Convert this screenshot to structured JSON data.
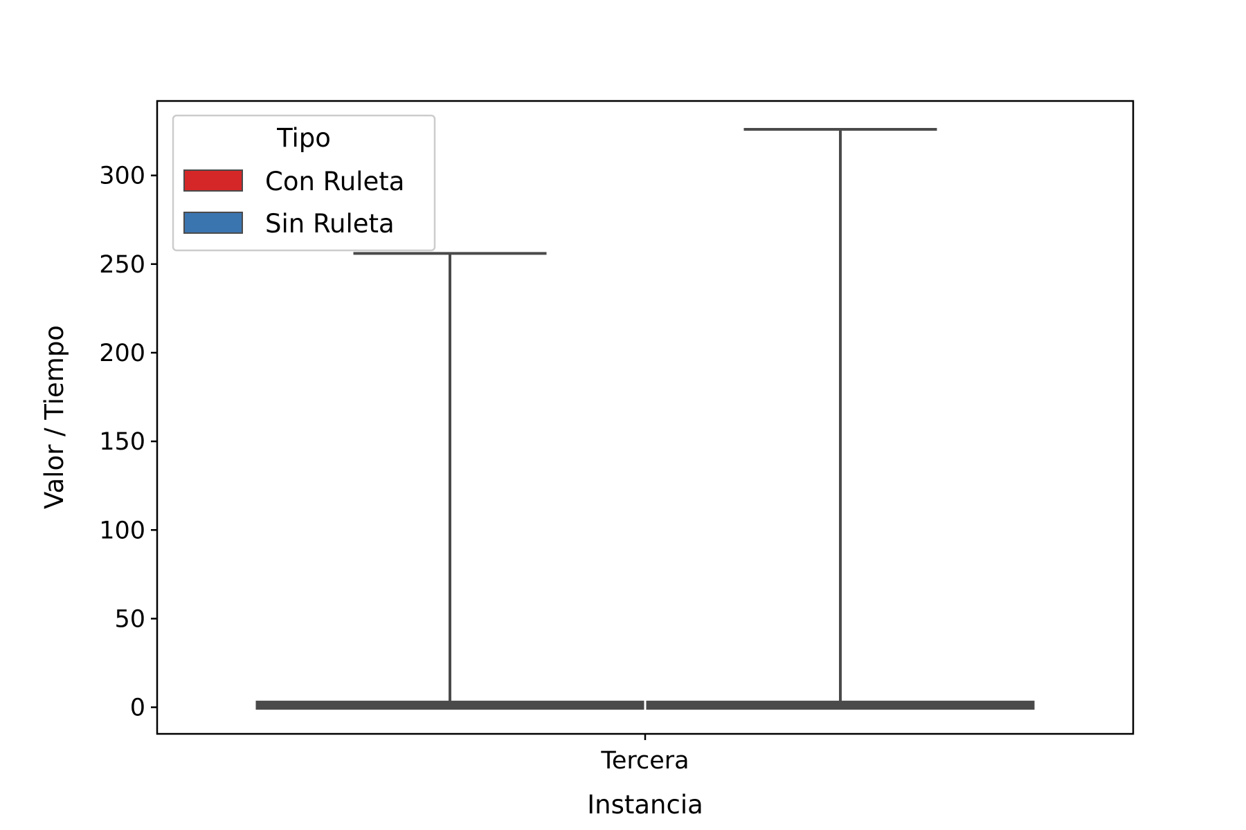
{
  "chart_data": {
    "type": "box",
    "xlabel": "Instancia",
    "ylabel": "Valor / Tiempo",
    "categories": [
      "Tercera"
    ],
    "ylim": [
      -15,
      342
    ],
    "yticks": [
      0,
      50,
      100,
      150,
      200,
      250,
      300
    ],
    "grid": false,
    "legend": {
      "title": "Tipo",
      "placement": "top-left",
      "entries": [
        {
          "label": "Con Ruleta",
          "color": "#d62728"
        },
        {
          "label": "Sin Ruleta",
          "color": "#3b75af"
        }
      ]
    },
    "series": [
      {
        "name": "Con Ruleta",
        "color": "#d62728",
        "values": [
          {
            "category": "Tercera",
            "min": 0,
            "q1": 0,
            "median": 1,
            "q3": 3,
            "max": 256
          }
        ]
      },
      {
        "name": "Sin Ruleta",
        "color": "#3b75af",
        "values": [
          {
            "category": "Tercera",
            "min": 0,
            "q1": 0,
            "median": 1,
            "q3": 3,
            "max": 326
          }
        ]
      }
    ],
    "box_edge_color": "#4a4a4a"
  }
}
